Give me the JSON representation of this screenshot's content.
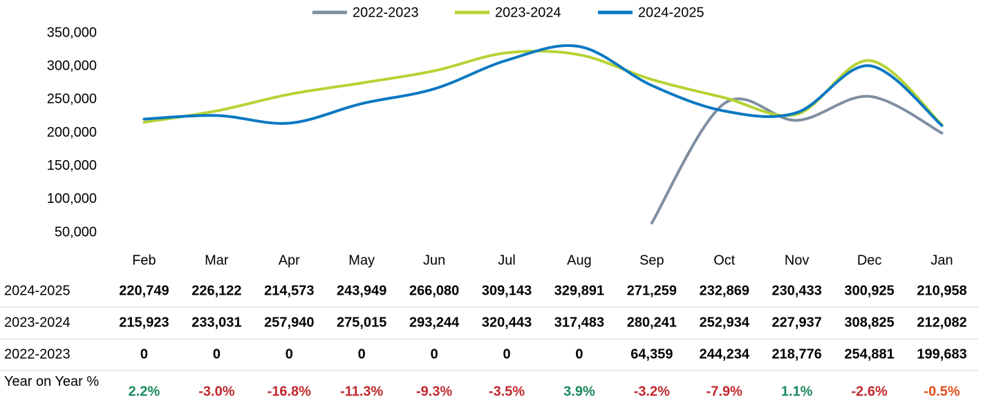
{
  "chart_data": {
    "type": "line",
    "categories": [
      "Feb",
      "Mar",
      "Apr",
      "May",
      "Jun",
      "Jul",
      "Aug",
      "Sep",
      "Oct",
      "Nov",
      "Dec",
      "Jan"
    ],
    "series": [
      {
        "name": "2022-2023",
        "color": "#7f8fa0",
        "values": [
          null,
          null,
          null,
          null,
          null,
          null,
          null,
          64359,
          244234,
          218776,
          254881,
          199683
        ]
      },
      {
        "name": "2023-2024",
        "color": "#b5d334",
        "values": [
          215923,
          233031,
          257940,
          275015,
          293244,
          320443,
          317483,
          280241,
          252934,
          227937,
          308825,
          212082
        ]
      },
      {
        "name": "2024-2025",
        "color": "#0a78c2",
        "values": [
          220749,
          226122,
          214573,
          243949,
          266080,
          309143,
          329891,
          271259,
          232869,
          230433,
          300925,
          210958
        ]
      }
    ],
    "ylim": [
      50000,
      350000
    ],
    "yticks": [
      {
        "value": 50000,
        "label": "50,000"
      },
      {
        "value": 100000,
        "label": "100,000"
      },
      {
        "value": 150000,
        "label": "150,000"
      },
      {
        "value": 200000,
        "label": "200,000"
      },
      {
        "value": 250000,
        "label": "250,000"
      },
      {
        "value": 300000,
        "label": "300,000"
      },
      {
        "value": 350000,
        "label": "350,000"
      }
    ],
    "grid": false,
    "legend": "top",
    "smooth": true
  },
  "table": {
    "rows": [
      {
        "label": "2024-2025",
        "cells": [
          "220,749",
          "226,122",
          "214,573",
          "243,949",
          "266,080",
          "309,143",
          "329,891",
          "271,259",
          "232,869",
          "230,433",
          "300,925",
          "210,958"
        ]
      },
      {
        "label": "2023-2024",
        "cells": [
          "215,923",
          "233,031",
          "257,940",
          "275,015",
          "293,244",
          "320,443",
          "317,483",
          "280,241",
          "252,934",
          "227,937",
          "308,825",
          "212,082"
        ]
      },
      {
        "label": "2022-2023",
        "cells": [
          "0",
          "0",
          "0",
          "0",
          "0",
          "0",
          "0",
          "64,359",
          "244,234",
          "218,776",
          "254,881",
          "199,683"
        ]
      }
    ],
    "yoy": {
      "label": "Year on Year %",
      "cells": [
        "2.2%",
        "-3.0%",
        "-16.8%",
        "-11.3%",
        "-9.3%",
        "-3.5%",
        "3.9%",
        "-3.2%",
        "-7.9%",
        "1.1%",
        "-2.6%",
        "-0.5%"
      ],
      "colors": [
        "#1a8a5a",
        "#c0282d",
        "#c0282d",
        "#c0282d",
        "#c0282d",
        "#c0282d",
        "#1a8a5a",
        "#c0282d",
        "#c0282d",
        "#1a8a5a",
        "#c0282d",
        "#e0501a"
      ]
    }
  }
}
